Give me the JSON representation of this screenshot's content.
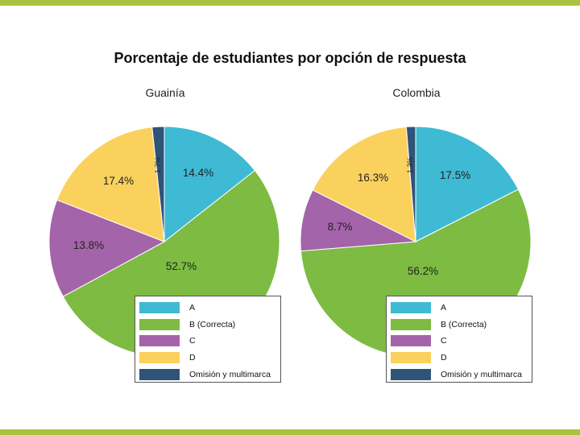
{
  "chart_data": [
    {
      "type": "pie",
      "title": "Guainía",
      "categories": [
        "A",
        "B (Correcta)",
        "C",
        "D",
        "Omisión y multimarca"
      ],
      "values": [
        14.4,
        52.7,
        13.8,
        17.4,
        1.7
      ],
      "labels": [
        "14.4%",
        "52.7%",
        "13.8%",
        "17.4%",
        "1.7%"
      ]
    },
    {
      "type": "pie",
      "title": "Colombia",
      "categories": [
        "A",
        "B (Correcta)",
        "C",
        "D",
        "Omisión y multimarca"
      ],
      "values": [
        17.5,
        56.2,
        8.7,
        16.3,
        1.3
      ],
      "labels": [
        "17.5%",
        "56.2%",
        "8.7%",
        "16.3%",
        "1.3%"
      ]
    }
  ],
  "figure_title": "Porcentaje de estudiantes por opción de respuesta",
  "colors": [
    "#3fbad5",
    "#7dbb42",
    "#a464a9",
    "#fbd15e",
    "#2f5478"
  ],
  "frame_color": "#a9c23f"
}
